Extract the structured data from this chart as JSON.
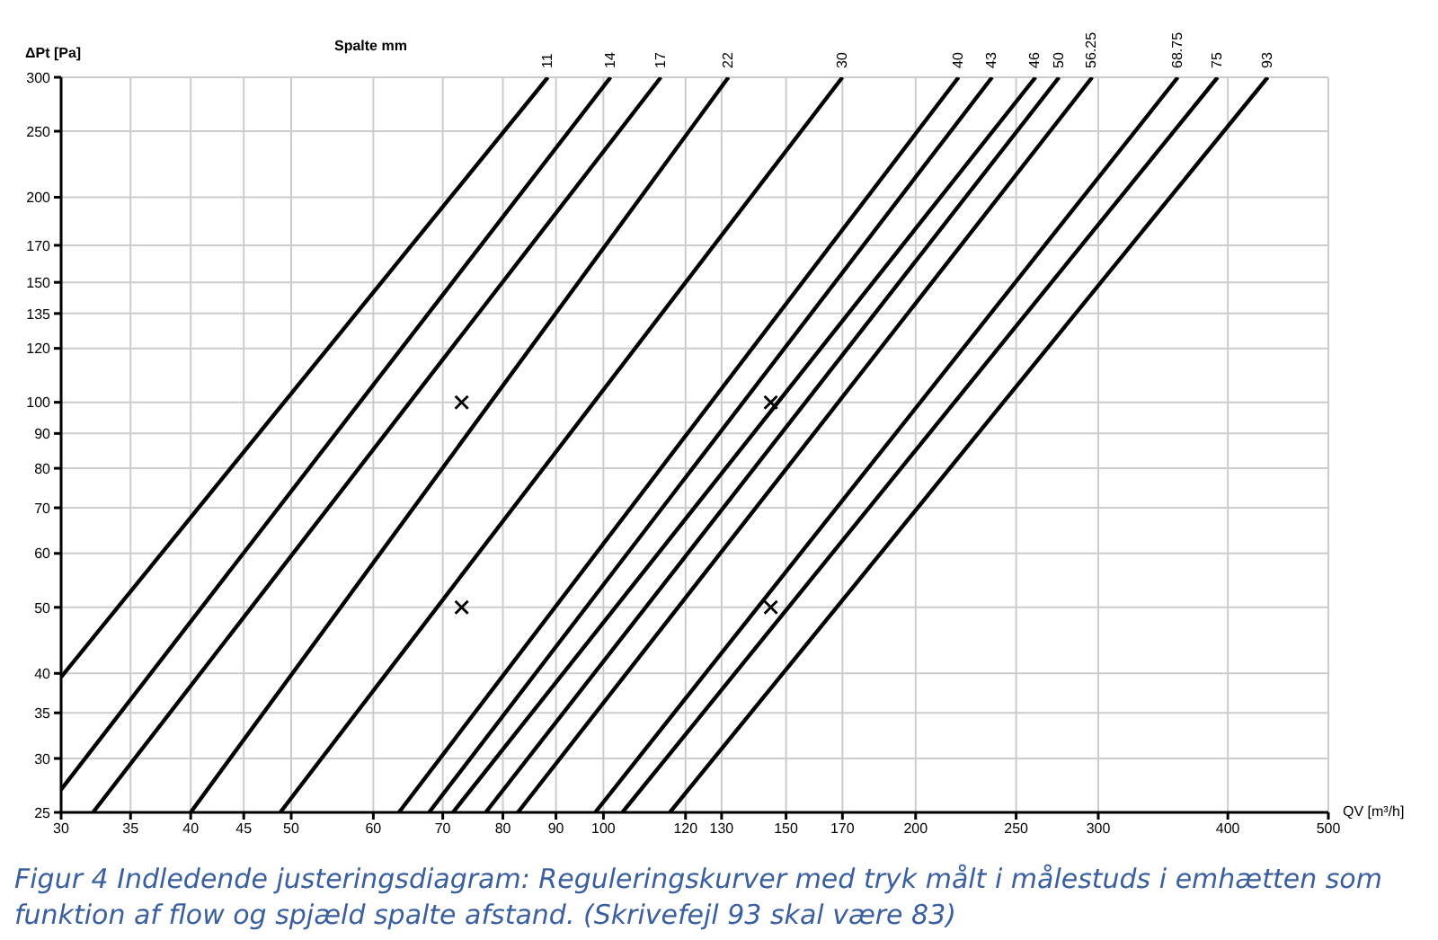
{
  "chart_data": {
    "type": "line",
    "legend_title": "Spalte mm",
    "xlabel": "QV [m³/h]",
    "ylabel": "ΔPt [Pa]",
    "log": "xy",
    "grid": true,
    "marker": "none",
    "line_style": "solid",
    "xlim": [
      30,
      500
    ],
    "xticks": [
      30,
      35,
      40,
      45,
      50,
      60,
      70,
      80,
      90,
      100,
      120,
      130,
      150,
      170,
      200,
      250,
      300,
      400,
      500
    ],
    "ylim": [
      25,
      300
    ],
    "yticks": [
      25,
      30,
      35,
      40,
      50,
      60,
      70,
      80,
      90,
      100,
      120,
      135,
      150,
      170,
      200,
      250,
      300
    ],
    "series": [
      {
        "name": "11",
        "color": "#000000",
        "x": [
          30,
          88.4
        ],
        "values": [
          39.5,
          300
        ]
      },
      {
        "name": "14",
        "color": "#000000",
        "x": [
          30,
          101.6
        ],
        "values": [
          27,
          300
        ]
      },
      {
        "name": "17",
        "color": "#000000",
        "x": [
          32.2,
          113.6
        ],
        "values": [
          25,
          300
        ]
      },
      {
        "name": "22",
        "color": "#000000",
        "x": [
          40,
          132
        ],
        "values": [
          25,
          300
        ]
      },
      {
        "name": "30",
        "color": "#000000",
        "x": [
          48.8,
          170
        ],
        "values": [
          25,
          300
        ]
      },
      {
        "name": "40",
        "color": "#000000",
        "x": [
          63.5,
          220
        ],
        "values": [
          25,
          300
        ]
      },
      {
        "name": "43",
        "color": "#000000",
        "x": [
          67.9,
          237
        ],
        "values": [
          25,
          300
        ]
      },
      {
        "name": "46",
        "color": "#000000",
        "x": [
          71.6,
          261
        ],
        "values": [
          25,
          300
        ]
      },
      {
        "name": "50",
        "color": "#000000",
        "x": [
          77,
          275
        ],
        "values": [
          25,
          300
        ]
      },
      {
        "name": "56.25",
        "color": "#000000",
        "x": [
          82.7,
          296
        ],
        "values": [
          25,
          300
        ]
      },
      {
        "name": "68.75",
        "color": "#000000",
        "x": [
          98.2,
          358
        ],
        "values": [
          25,
          300
        ]
      },
      {
        "name": "75",
        "color": "#000000",
        "x": [
          104.3,
          391
        ],
        "values": [
          25,
          300
        ]
      },
      {
        "name": "93",
        "color": "#000000",
        "x": [
          115.9,
          437
        ],
        "values": [
          25,
          300
        ]
      },
      {
        "type": "scatter",
        "marker": "cross",
        "color": "#000000",
        "x": [
          73,
          73,
          145,
          145
        ],
        "values": [
          100,
          50,
          100,
          50
        ]
      }
    ],
    "annotations": [
      "Figur 4 Indledende justeringsdiagram: Reguleringskurver med tryk målt i målestuds i emhætten som funktion af flow og spjæld spalte afstand. (Skrivefejl 93 skal være 83)"
    ]
  }
}
